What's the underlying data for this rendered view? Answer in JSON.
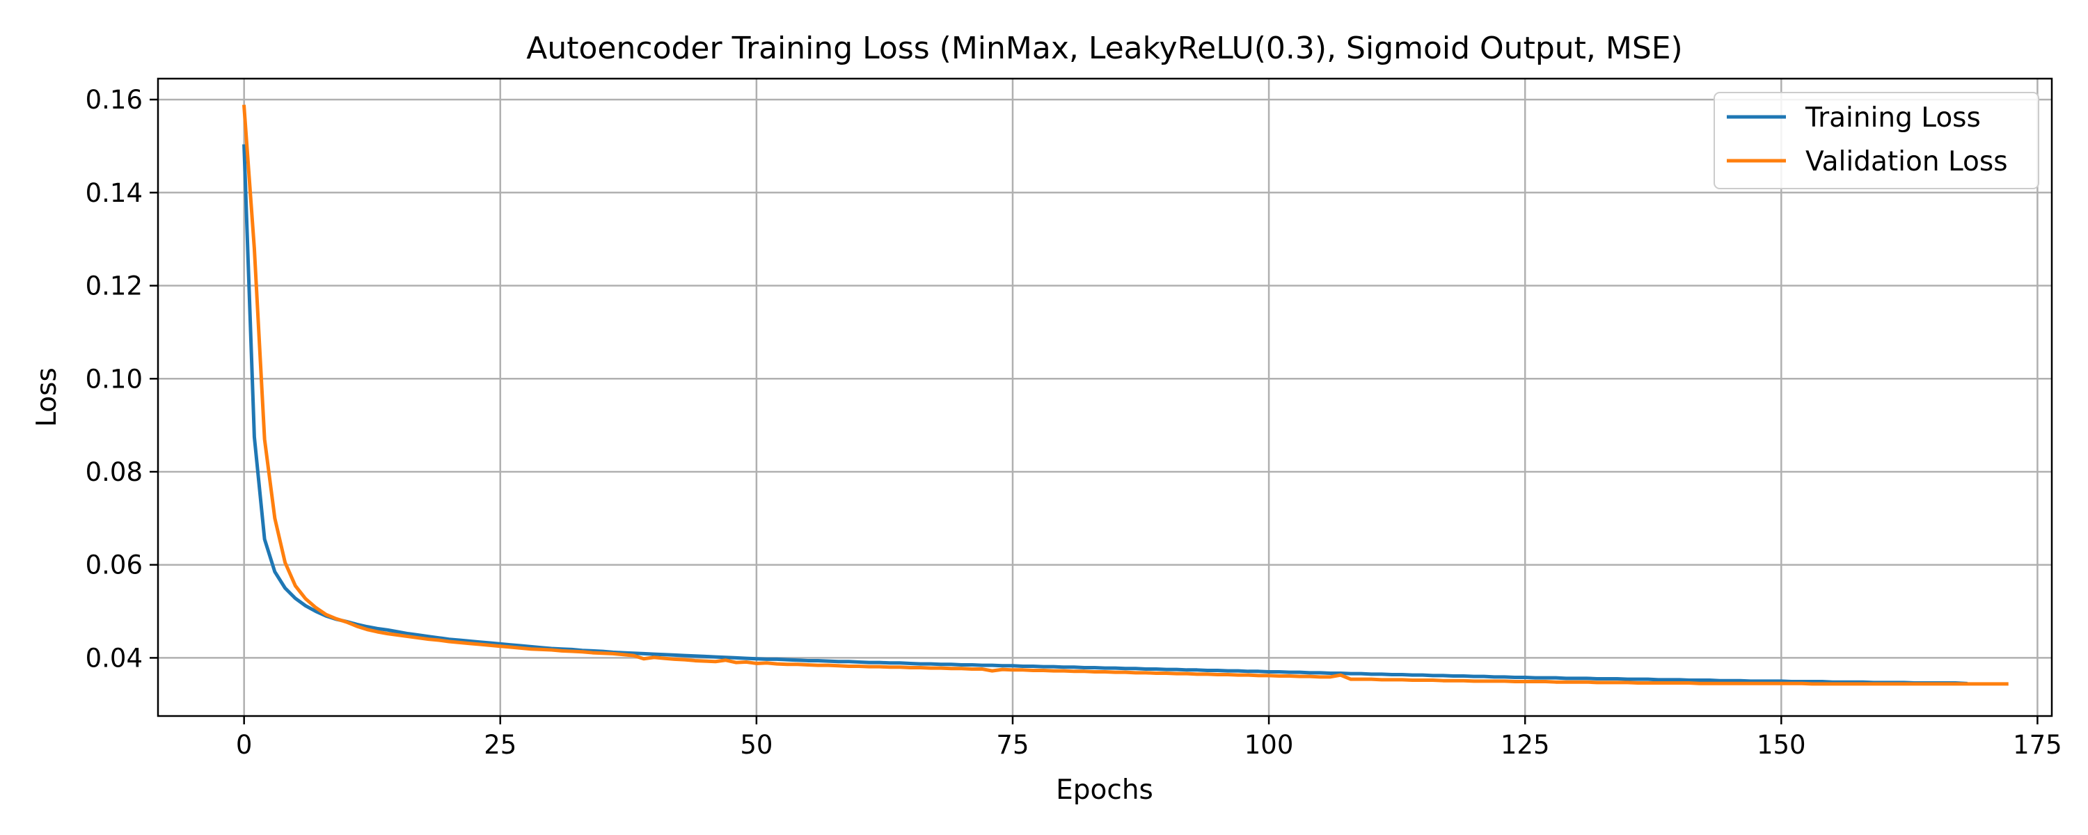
{
  "chart_data": {
    "type": "line",
    "title": "Autoencoder Training Loss (MinMax, LeakyReLU(0.3), Sigmoid Output, MSE)",
    "xlabel": "Epochs",
    "ylabel": "Loss",
    "xlim": [
      -8.4,
      176.4
    ],
    "ylim": [
      0.0275,
      0.1645
    ],
    "xticks": [
      0,
      25,
      50,
      75,
      100,
      125,
      150,
      175
    ],
    "yticks": [
      0.04,
      0.06,
      0.08,
      0.1,
      0.12,
      0.14,
      0.16
    ],
    "xtick_labels": [
      "0",
      "25",
      "50",
      "75",
      "100",
      "125",
      "150",
      "175"
    ],
    "ytick_labels": [
      "0.04",
      "0.06",
      "0.08",
      "0.10",
      "0.12",
      "0.14",
      "0.16"
    ],
    "grid": true,
    "legend_position": "top-right",
    "series": [
      {
        "name": "Training Loss",
        "color": "#1f77b4",
        "x_start": 0,
        "values": [
          0.15,
          0.0875,
          0.0655,
          0.0585,
          0.055,
          0.0528,
          0.0512,
          0.05,
          0.049,
          0.0483,
          0.0478,
          0.0472,
          0.0467,
          0.0463,
          0.046,
          0.0456,
          0.0452,
          0.0449,
          0.0446,
          0.0443,
          0.044,
          0.0438,
          0.0436,
          0.0434,
          0.0432,
          0.043,
          0.0428,
          0.0426,
          0.0424,
          0.0422,
          0.042,
          0.0419,
          0.0418,
          0.0416,
          0.0415,
          0.0414,
          0.0412,
          0.0411,
          0.041,
          0.0409,
          0.0408,
          0.0407,
          0.0406,
          0.0405,
          0.0404,
          0.0403,
          0.0402,
          0.0401,
          0.04,
          0.0399,
          0.0398,
          0.0397,
          0.0397,
          0.0396,
          0.0395,
          0.0394,
          0.0394,
          0.0393,
          0.0392,
          0.0392,
          0.0391,
          0.039,
          0.039,
          0.0389,
          0.0389,
          0.0388,
          0.0387,
          0.0387,
          0.0386,
          0.0386,
          0.0385,
          0.0385,
          0.0384,
          0.0384,
          0.0383,
          0.0383,
          0.0382,
          0.0382,
          0.0381,
          0.0381,
          0.038,
          0.038,
          0.0379,
          0.0379,
          0.0378,
          0.0378,
          0.0377,
          0.0377,
          0.0376,
          0.0376,
          0.0375,
          0.0375,
          0.0374,
          0.0374,
          0.0373,
          0.0373,
          0.0372,
          0.0372,
          0.0371,
          0.0371,
          0.037,
          0.037,
          0.0369,
          0.0369,
          0.0368,
          0.0368,
          0.0367,
          0.0367,
          0.0366,
          0.0366,
          0.0365,
          0.0365,
          0.0364,
          0.0364,
          0.0363,
          0.0363,
          0.0362,
          0.0362,
          0.0361,
          0.0361,
          0.036,
          0.036,
          0.0359,
          0.0359,
          0.0358,
          0.0358,
          0.0357,
          0.0357,
          0.0357,
          0.0356,
          0.0356,
          0.0356,
          0.0355,
          0.0355,
          0.0355,
          0.0354,
          0.0354,
          0.0354,
          0.0353,
          0.0353,
          0.0353,
          0.0352,
          0.0352,
          0.0352,
          0.0351,
          0.0351,
          0.0351,
          0.035,
          0.035,
          0.035,
          0.035,
          0.0349,
          0.0349,
          0.0349,
          0.0349,
          0.0348,
          0.0348,
          0.0348,
          0.0348,
          0.0347,
          0.0347,
          0.0347,
          0.0347,
          0.0346,
          0.0346,
          0.0346,
          0.0346,
          0.0346,
          0.0345
        ]
      },
      {
        "name": "Validation Loss",
        "color": "#ff7f0e",
        "x_start": 0,
        "values": [
          0.1585,
          0.128,
          0.087,
          0.07,
          0.0605,
          0.0555,
          0.0527,
          0.0508,
          0.0493,
          0.0484,
          0.0477,
          0.0468,
          0.0461,
          0.0456,
          0.0452,
          0.0449,
          0.0446,
          0.0443,
          0.044,
          0.0438,
          0.0435,
          0.0433,
          0.0431,
          0.0429,
          0.0427,
          0.0425,
          0.0423,
          0.0421,
          0.0419,
          0.0418,
          0.0417,
          0.0415,
          0.0414,
          0.0413,
          0.0411,
          0.041,
          0.0409,
          0.0407,
          0.0405,
          0.0398,
          0.0401,
          0.0399,
          0.0397,
          0.0396,
          0.0394,
          0.0393,
          0.0392,
          0.0395,
          0.039,
          0.0391,
          0.0388,
          0.0389,
          0.0387,
          0.0386,
          0.0386,
          0.0385,
          0.0384,
          0.0384,
          0.0383,
          0.0382,
          0.0382,
          0.0381,
          0.0381,
          0.038,
          0.038,
          0.0379,
          0.0379,
          0.0378,
          0.0378,
          0.0377,
          0.0377,
          0.0376,
          0.0376,
          0.0372,
          0.0375,
          0.0374,
          0.0374,
          0.0373,
          0.0373,
          0.0372,
          0.0372,
          0.0371,
          0.0371,
          0.037,
          0.037,
          0.0369,
          0.0369,
          0.0368,
          0.0368,
          0.0367,
          0.0367,
          0.0366,
          0.0366,
          0.0365,
          0.0365,
          0.0364,
          0.0364,
          0.0363,
          0.0363,
          0.0362,
          0.0362,
          0.0361,
          0.0361,
          0.036,
          0.036,
          0.0359,
          0.0359,
          0.0363,
          0.0354,
          0.0354,
          0.0354,
          0.0353,
          0.0353,
          0.0353,
          0.0352,
          0.0352,
          0.0352,
          0.0351,
          0.0351,
          0.0351,
          0.035,
          0.035,
          0.035,
          0.035,
          0.0349,
          0.0349,
          0.0349,
          0.0349,
          0.0348,
          0.0348,
          0.0348,
          0.0348,
          0.0347,
          0.0347,
          0.0347,
          0.0347,
          0.0346,
          0.0346,
          0.0346,
          0.0346,
          0.0346,
          0.0346,
          0.0345,
          0.0345,
          0.0345,
          0.0345,
          0.0345,
          0.0345,
          0.0345,
          0.0345,
          0.0345,
          0.0345,
          0.0345,
          0.0344,
          0.0344,
          0.0344,
          0.0344,
          0.0344,
          0.0344,
          0.0344,
          0.0344,
          0.0344,
          0.0344,
          0.0344,
          0.0344,
          0.0344,
          0.0344,
          0.0344,
          0.0344,
          0.0344,
          0.0344,
          0.0344,
          0.0344
        ]
      }
    ],
    "colors": {
      "grid": "#b0b0b0",
      "axes": "#000000",
      "background": "#ffffff"
    }
  }
}
